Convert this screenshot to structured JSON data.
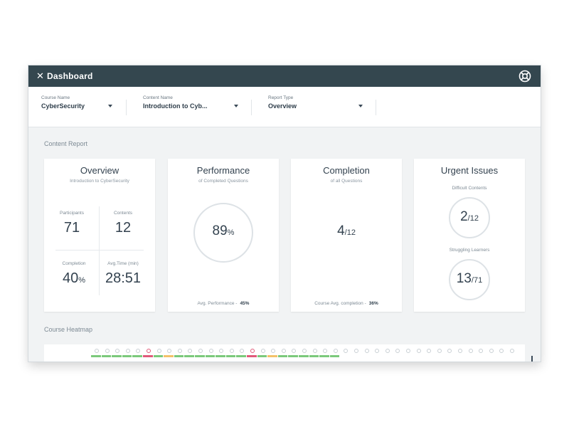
{
  "header": {
    "title": "Dashboard",
    "close_icon": "close-icon",
    "help_icon": "lifebuoy-icon"
  },
  "filters": [
    {
      "label": "Course Name",
      "value": "CyberSecurity"
    },
    {
      "label": "Content Name",
      "value": "Introduction to Cyb..."
    },
    {
      "label": "Report Type",
      "value": "Overview"
    }
  ],
  "content_report_label": "Content Report",
  "overview": {
    "title": "Overview",
    "subtitle": "Introduction to CyberSecurity",
    "participants_label": "Participants",
    "participants": "71",
    "contents_label": "Contents",
    "contents": "12",
    "completion_label": "Completion",
    "completion": "40",
    "completion_unit": "%",
    "avg_time_label": "Avg.Time (min)",
    "avg_time": "28:51"
  },
  "performance": {
    "title": "Performance",
    "subtitle": "of Completed Questions",
    "value": "89",
    "unit": "%",
    "footer_label": "Avg. Performance -",
    "footer_value": "45%"
  },
  "completion": {
    "title": "Completion",
    "subtitle": "of all Questions",
    "value": "4",
    "total": "/12",
    "footer_label": "Course Avg. completion -",
    "footer_value": "36%"
  },
  "urgent": {
    "title": "Urgent Issues",
    "difficult_label": "Difficult Contents",
    "difficult_value": "2",
    "difficult_total": "/12",
    "struggling_label": "Struggling Learners",
    "struggling_value": "13",
    "struggling_total": "/71"
  },
  "heatmap_label": "Course Heatmap",
  "colors": {
    "header": "#34474f",
    "good": "#7bc97b",
    "warn": "#f3c26a",
    "bad": "#e05a7a",
    "neutral": "#c9cfd4"
  }
}
